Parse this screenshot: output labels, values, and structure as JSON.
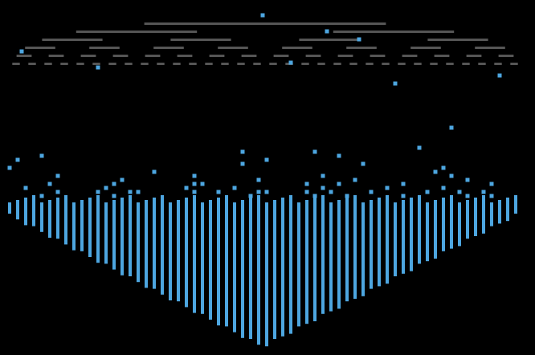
{
  "colors": {
    "background": "#000000",
    "tree_bars": "#555555",
    "active_elements": "#4da6e0"
  },
  "tree_levels": [
    1,
    2,
    4,
    8,
    16,
    32
  ]
}
